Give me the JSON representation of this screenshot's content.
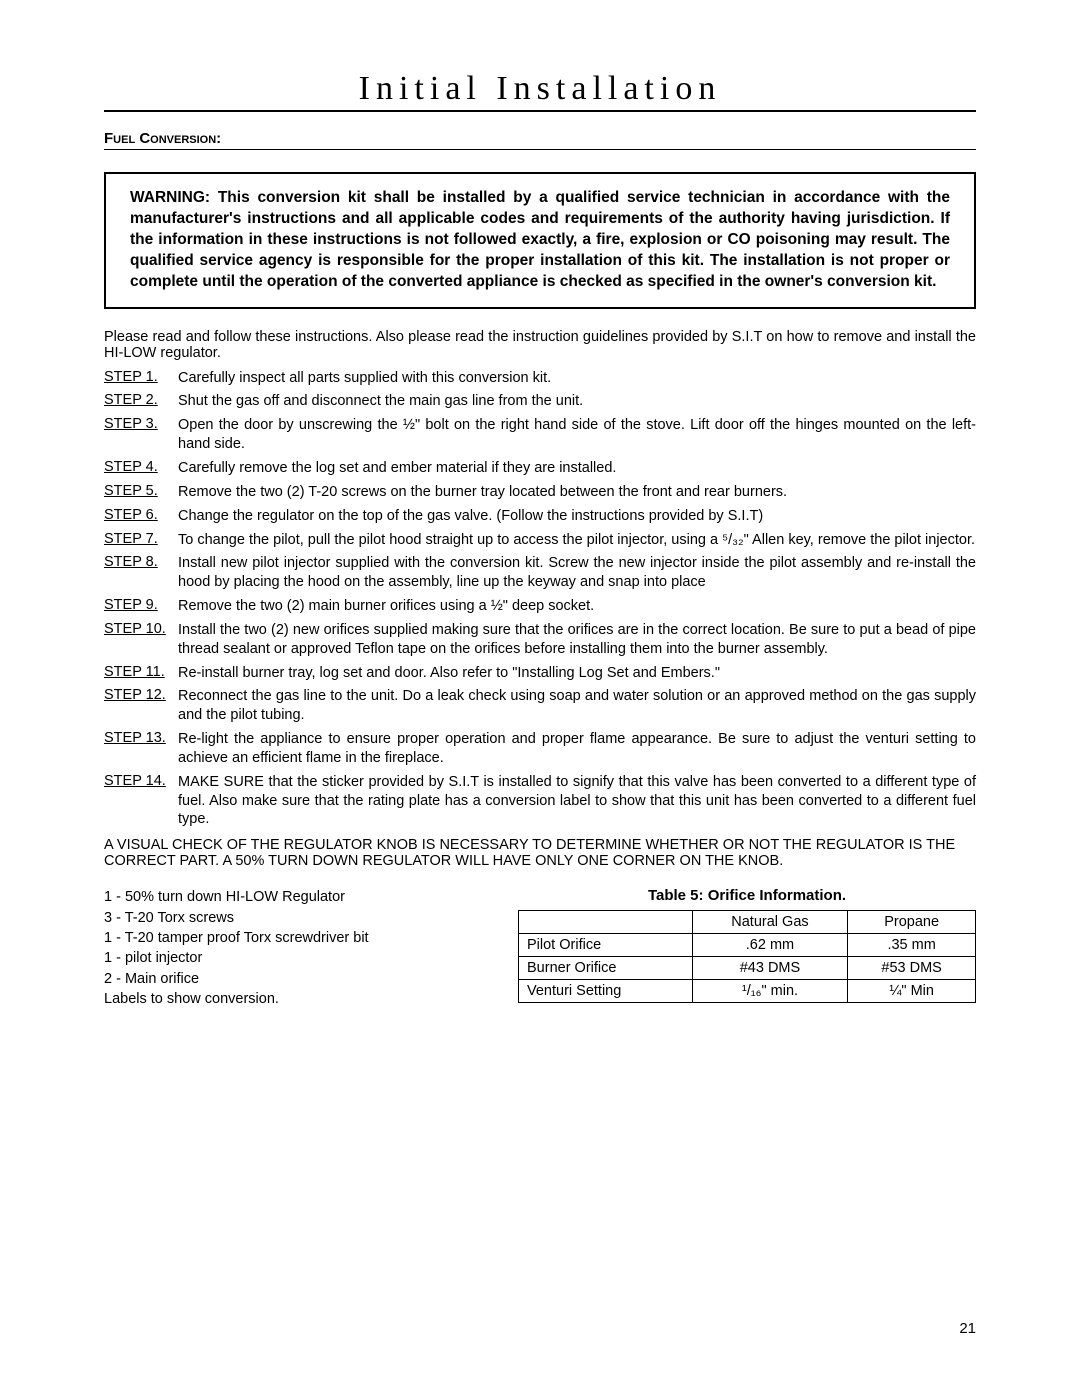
{
  "title": "Initial Installation",
  "subsection": "Fuel Conversion:",
  "warning": "WARNING: This conversion kit shall be installed by a qualified service technician in accordance with the manufacturer's instructions and all applicable codes and requirements of the authority having jurisdiction.  If the information in these instructions is not followed exactly, a fire, explosion or CO poisoning may result.  The qualified service agency is responsible for the proper installation of this kit.  The installation is not proper or complete until the operation of the converted appliance is checked as specified in the owner's conversion kit.",
  "intro": "Please read and follow these instructions. Also please read the instruction guidelines provided by S.I.T on how to remove and install the HI-LOW regulator.",
  "steps": [
    {
      "label": "STEP 1.",
      "text": "Carefully inspect all parts supplied with this conversion kit."
    },
    {
      "label": "STEP 2.",
      "text": "Shut the gas off and disconnect the main gas line from the unit."
    },
    {
      "label": "STEP 3.",
      "text": "Open the door by unscrewing the ½\" bolt on the right hand side of the stove.  Lift door off the hinges mounted on the left-hand side."
    },
    {
      "label": "STEP 4.",
      "text": "Carefully remove the log set and ember material if they are installed."
    },
    {
      "label": "STEP 5.",
      "text": "Remove the two (2) T-20 screws on the burner tray located between the front and rear burners."
    },
    {
      "label": "STEP 6.",
      "text": "Change the regulator on the top of the gas valve. (Follow the instructions provided by S.I.T)"
    },
    {
      "label": "STEP 7.",
      "text": "To change the pilot, pull the pilot hood straight up to access the pilot injector, using a ⁵/₃₂\" Allen key, remove the pilot injector."
    },
    {
      "label": "STEP 8.",
      "text": "Install new pilot injector supplied with the conversion kit. Screw the new injector inside the pilot assembly and re-install the hood by placing the hood on the assembly, line up the keyway and snap into place"
    },
    {
      "label": "STEP 9.",
      "text": "Remove the two (2) main burner orifices using a ½\" deep socket."
    },
    {
      "label": "STEP 10.",
      "text": "Install the two (2) new orifices supplied making sure that the orifices are in the correct location. Be sure to put a bead of pipe thread sealant or approved Teflon tape on the orifices before installing them into the burner assembly."
    },
    {
      "label": "STEP 11.",
      "text": "Re-install burner tray, log set and door. Also refer to \"Installing Log Set and Embers.\""
    },
    {
      "label": "STEP 12.",
      "text": "Reconnect the gas line to the unit.  Do a leak check using soap and water solution or an approved method on the gas supply  and the pilot tubing."
    },
    {
      "label": "STEP 13.",
      "text": "Re-light the appliance to ensure proper operation and proper flame appearance. Be sure to adjust the venturi setting to achieve an efficient flame in the fireplace."
    },
    {
      "label": "STEP 14.",
      "text": "MAKE SURE that the sticker provided by S.I.T is installed to signify that this valve has been converted to a different type of fuel. Also make sure that the rating plate has a conversion label to show that this unit has been converted to a different fuel type."
    }
  ],
  "visual_check": "A VISUAL CHECK OF THE REGULATOR KNOB IS NECESSARY TO DETERMINE WHETHER OR NOT THE REGULATOR IS THE CORRECT PART.  A 50% TURN DOWN REGULATOR WILL HAVE ONLY ONE CORNER ON THE KNOB.",
  "parts_list": [
    "1 - 50% turn down HI-LOW Regulator",
    "3 - T-20 Torx screws",
    "1 - T-20 tamper proof Torx screwdriver bit",
    "1 - pilot injector",
    "2 - Main orifice",
    "Labels to show conversion."
  ],
  "table": {
    "caption": "Table 5: Orifice Information.",
    "columns": [
      "",
      "Natural Gas",
      "Propane"
    ],
    "rows": [
      [
        "Pilot Orifice",
        ".62 mm",
        ".35 mm"
      ],
      [
        "Burner Orifice",
        "#43 DMS",
        "#53 DMS"
      ],
      [
        "Venturi Setting",
        "¹/₁₆\" min.",
        "¼\" Min"
      ]
    ]
  },
  "page_number": "21"
}
